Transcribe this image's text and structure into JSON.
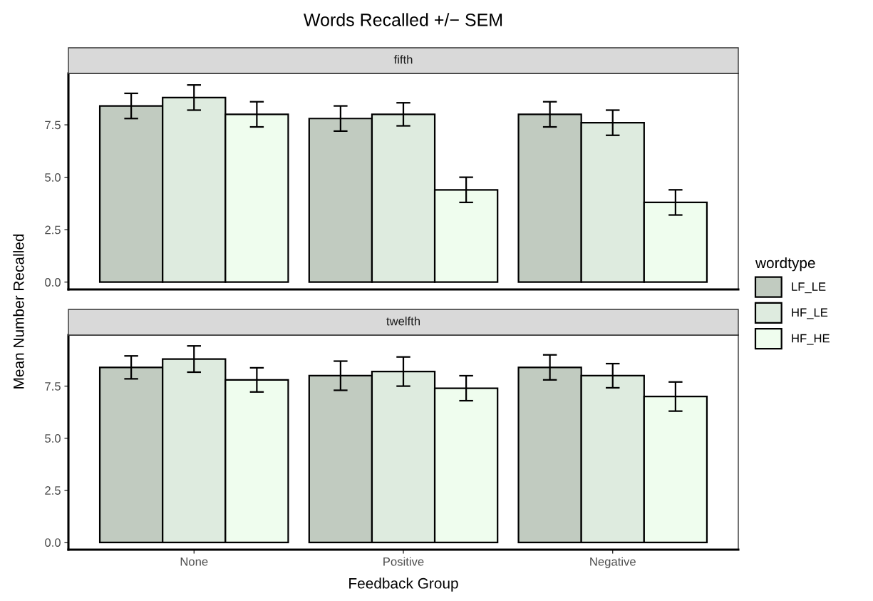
{
  "chart_data": [
    {
      "type": "bar",
      "title": "Words Recalled +/− SEM",
      "subtitle": "fifth",
      "ylabel": "Mean Number Recalled",
      "legend_title": "wordtype",
      "legend": "right",
      "grid": false,
      "tick_labels": "y",
      "ylim": [
        -0.35,
        9.95
      ],
      "yticks": [
        {
          "value": 0,
          "label": "0.0"
        },
        {
          "value": 2.5,
          "label": "2.5"
        },
        {
          "value": 5,
          "label": "5.0"
        },
        {
          "value": 7.5,
          "label": "7.5"
        }
      ],
      "series": [
        {
          "name": "LF_LE",
          "color": "#c1cbc0",
          "values": [
            8.4,
            7.8,
            8.0
          ],
          "errors": [
            0.6,
            0.6,
            0.6
          ]
        },
        {
          "name": "HF_LE",
          "color": "#deebdf",
          "values": [
            8.8,
            8.0,
            7.6
          ],
          "errors": [
            0.6,
            0.55,
            0.6
          ]
        },
        {
          "name": "HF_HE",
          "color": "#effdee",
          "values": [
            8.0,
            4.4,
            3.8
          ],
          "errors": [
            0.6,
            0.6,
            0.6
          ]
        }
      ]
    },
    {
      "type": "bar",
      "subtitle": "twelfth",
      "xlabel": "Feedback Group",
      "grid": false,
      "categories": [
        "None",
        "Positive",
        "Negative"
      ],
      "ylim": [
        -0.35,
        9.95
      ],
      "yticks": [
        {
          "value": 0,
          "label": "0.0"
        },
        {
          "value": 2.5,
          "label": "2.5"
        },
        {
          "value": 5,
          "label": "5.0"
        },
        {
          "value": 7.5,
          "label": "7.5"
        }
      ],
      "series": [
        {
          "color": "#c1cbc0",
          "values": [
            8.4,
            8.0,
            8.4
          ],
          "errors": [
            0.55,
            0.7,
            0.6
          ]
        },
        {
          "color": "#deebdf",
          "values": [
            8.8,
            8.2,
            8.0
          ],
          "errors": [
            0.63,
            0.7,
            0.58
          ]
        },
        {
          "color": "#effdee",
          "values": [
            7.8,
            7.4,
            7.0
          ],
          "errors": [
            0.58,
            0.6,
            0.7
          ]
        }
      ]
    }
  ]
}
